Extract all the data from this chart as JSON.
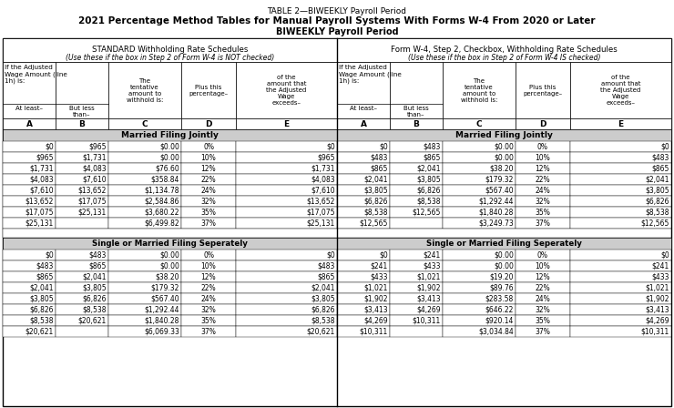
{
  "title1": "TABLE 2—BIWEEKLY Payroll Period",
  "title2": "2021 Percentage Method Tables for Manual Payroll Systems With Forms W-4 From 2020 or Later",
  "title3": "BIWEEKLY Payroll Period",
  "left_header1": "STANDARD Withholding Rate Schedules",
  "left_header2": "(Use these if the box in Step 2 of Form W-4 is NOT checked)",
  "right_header1": "Form W-4, Step 2, Checkbox, Withholding Rate Schedules",
  "right_header2": "(Use these if the box in Step 2 of Form W-4 IS checked)",
  "col_letters": [
    "A",
    "B",
    "C",
    "D",
    "E"
  ],
  "col_hdr_row1_left": "If the Adjusted\nWage Amount (line\n1h) is:",
  "col_hdr_row1_right": "If the Adjusted\nWage Amount (line\n1h) is:",
  "col_hdr_C": "The\ntentative\namount to\nwithhold is:",
  "col_hdr_D": "Plus this\npercentage–",
  "col_hdr_E": "of the\namount that\nthe Adjusted\nWage\nexceeds–",
  "col_hdr_A_sub": "At least–",
  "col_hdr_B_sub": "But less\nthan–",
  "married_label": "Married Filing Jointly",
  "single_label": "Single or Married Filing Seperately",
  "mfj_left": [
    [
      "$0",
      "$965",
      "$0.00",
      "0%",
      "$0"
    ],
    [
      "$965",
      "$1,731",
      "$0.00",
      "10%",
      "$965"
    ],
    [
      "$1,731",
      "$4,083",
      "$76.60",
      "12%",
      "$1,731"
    ],
    [
      "$4,083",
      "$7,610",
      "$358.84",
      "22%",
      "$4,083"
    ],
    [
      "$7,610",
      "$13,652",
      "$1,134.78",
      "24%",
      "$7,610"
    ],
    [
      "$13,652",
      "$17,075",
      "$2,584.86",
      "32%",
      "$13,652"
    ],
    [
      "$17,075",
      "$25,131",
      "$3,680.22",
      "35%",
      "$17,075"
    ],
    [
      "$25,131",
      "",
      "$6,499.82",
      "37%",
      "$25,131"
    ]
  ],
  "mfj_right": [
    [
      "$0",
      "$483",
      "$0.00",
      "0%",
      "$0"
    ],
    [
      "$483",
      "$865",
      "$0.00",
      "10%",
      "$483"
    ],
    [
      "$865",
      "$2,041",
      "$38.20",
      "12%",
      "$865"
    ],
    [
      "$2,041",
      "$3,805",
      "$179.32",
      "22%",
      "$2,041"
    ],
    [
      "$3,805",
      "$6,826",
      "$567.40",
      "24%",
      "$3,805"
    ],
    [
      "$6,826",
      "$8,538",
      "$1,292.44",
      "32%",
      "$6,826"
    ],
    [
      "$8,538",
      "$12,565",
      "$1,840.28",
      "35%",
      "$8,538"
    ],
    [
      "$12,565",
      "",
      "$3,249.73",
      "37%",
      "$12,565"
    ]
  ],
  "single_left": [
    [
      "$0",
      "$483",
      "$0.00",
      "0%",
      "$0"
    ],
    [
      "$483",
      "$865",
      "$0.00",
      "10%",
      "$483"
    ],
    [
      "$865",
      "$2,041",
      "$38.20",
      "12%",
      "$865"
    ],
    [
      "$2,041",
      "$3,805",
      "$179.32",
      "22%",
      "$2,041"
    ],
    [
      "$3,805",
      "$6,826",
      "$567.40",
      "24%",
      "$3,805"
    ],
    [
      "$6,826",
      "$8,538",
      "$1,292.44",
      "32%",
      "$6,826"
    ],
    [
      "$8,538",
      "$20,621",
      "$1,840.28",
      "35%",
      "$8,538"
    ],
    [
      "$20,621",
      "",
      "$6,069.33",
      "37%",
      "$20,621"
    ]
  ],
  "single_right": [
    [
      "$0",
      "$241",
      "$0.00",
      "0%",
      "$0"
    ],
    [
      "$241",
      "$433",
      "$0.00",
      "10%",
      "$241"
    ],
    [
      "$433",
      "$1,021",
      "$19.20",
      "12%",
      "$433"
    ],
    [
      "$1,021",
      "$1,902",
      "$89.76",
      "22%",
      "$1,021"
    ],
    [
      "$1,902",
      "$3,413",
      "$283.58",
      "24%",
      "$1,902"
    ],
    [
      "$3,413",
      "$4,269",
      "$646.22",
      "32%",
      "$3,413"
    ],
    [
      "$4,269",
      "$10,311",
      "$920.14",
      "35%",
      "$4,269"
    ],
    [
      "$10,311",
      "",
      "$3,034.84",
      "37%",
      "$10,311"
    ]
  ],
  "section_gray": "#cccccc",
  "white": "#ffffff",
  "black": "#000000"
}
